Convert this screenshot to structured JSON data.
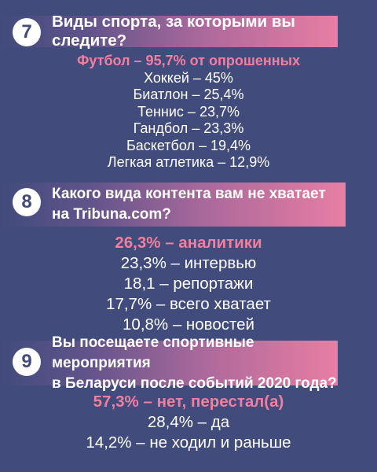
{
  "sections": [
    {
      "number": "7",
      "question": [
        "Виды спорта, за которыми вы следите?"
      ],
      "answers": [
        "Футбол – 95,7% от опрошенных",
        "Хоккей – 45%",
        "Биатлон – 25,4%",
        "Теннис – 23,7%",
        "Гандбол – 23,3%",
        "Баскетбол – 19,4%",
        "Легкая атлетика – 12,9%"
      ]
    },
    {
      "number": "8",
      "question": [
        "Какого вида контента вам не хватает",
        "на Tribuna.com?"
      ],
      "answers": [
        "26,3% – аналитики",
        "23,3% – интервью",
        "18,1 – репортажи",
        "17,7% – всего хватает",
        "10,8% – новостей"
      ]
    },
    {
      "number": "9",
      "question": [
        "Вы посещаете спортивные мероприятия",
        "в Беларуси после событий 2020 года?"
      ],
      "answers": [
        "57,3% – нет, перестал(а)",
        "28,4% – да",
        "14,2% – не ходил и раньше"
      ]
    }
  ],
  "colors": {
    "background": "#414b7c",
    "highlight": "#f07fa0",
    "question_bar": "#e87ea3",
    "text": "#ffffff"
  }
}
